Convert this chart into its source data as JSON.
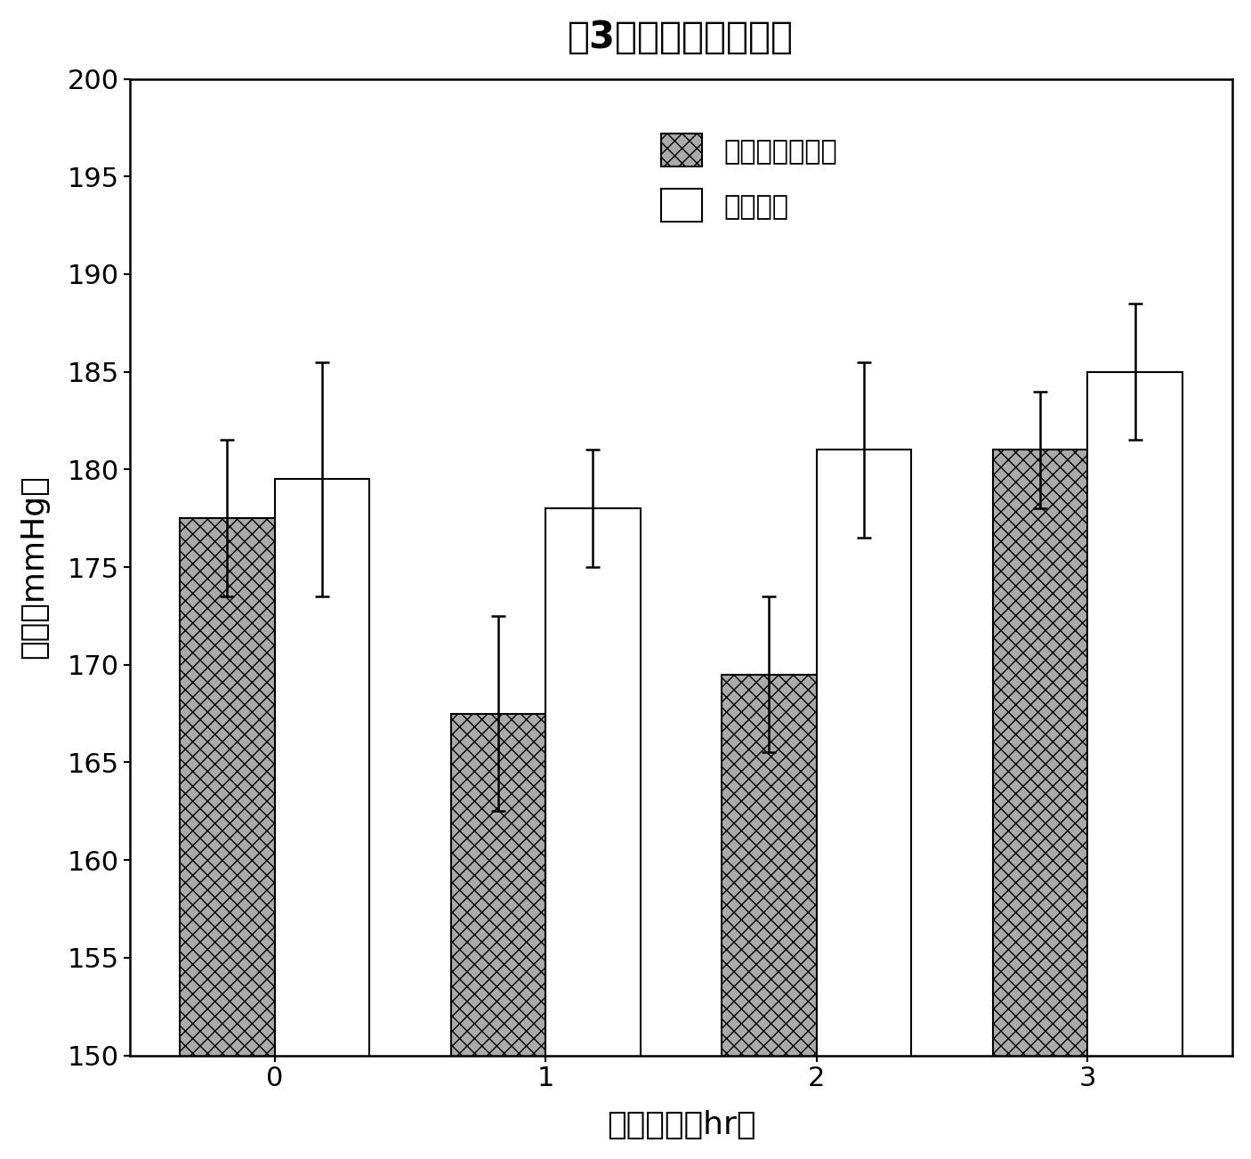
{
  "title": "図3　血圧の時間変化",
  "xlabel": "経過時間（hr）",
  "ylabel": "血圧（mmHg）",
  "x_ticks": [
    0,
    1,
    2,
    3
  ],
  "ylim": [
    150,
    200
  ],
  "yticks": [
    150,
    155,
    160,
    165,
    170,
    175,
    180,
    185,
    190,
    195,
    200
  ],
  "treatment_values": [
    177.5,
    167.5,
    169.5,
    181.0
  ],
  "water_values": [
    179.5,
    178.0,
    181.0,
    185.0
  ],
  "treatment_errors": [
    4.0,
    5.0,
    4.0,
    3.0
  ],
  "water_errors": [
    6.0,
    3.0,
    4.5,
    3.5
  ],
  "treatment_color": "#aaaaaa",
  "water_color": "#ffffff",
  "bar_width": 0.35,
  "legend_label_treatment": "鹿角霊芝投与群",
  "legend_label_water": "水投与群",
  "title_fontsize": 30,
  "axis_label_fontsize": 26,
  "tick_fontsize": 22,
  "legend_fontsize": 22,
  "background_color": "#ffffff",
  "hatch_treatment": "xx",
  "hatch_water": ""
}
